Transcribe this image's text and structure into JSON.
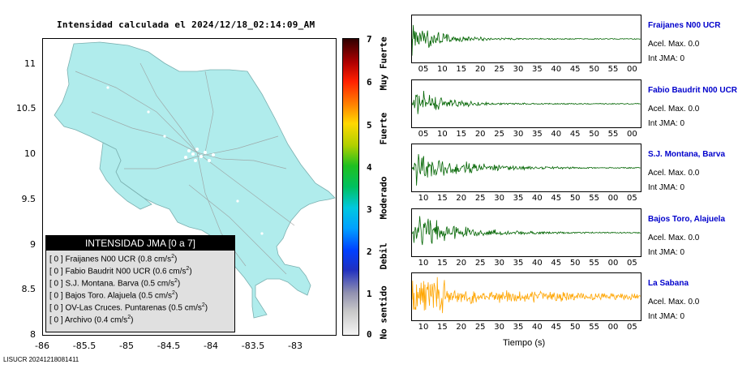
{
  "map": {
    "title": "Intensidad calculada el 2024/12/18_02:14:09_AM",
    "xticks": [
      "-86",
      "-85.5",
      "-85",
      "-84.5",
      "-84",
      "-83.5",
      "-83"
    ],
    "yticks": [
      "11",
      "10.5",
      "10",
      "9.5",
      "9",
      "8.5",
      "8"
    ]
  },
  "legend": {
    "header": "INTENSIDAD JMA [0 a 7]",
    "rows": [
      {
        "level": "[ 0 ]",
        "station": "Fraijanes N00 UCR",
        "value": "(0.8 cm/s",
        "unit_exp": "2",
        "close": ")"
      },
      {
        "level": "[ 0 ]",
        "station": "Fabio Baudrit N00 UCR",
        "value": "(0.6 cm/s",
        "unit_exp": "2",
        "close": ")"
      },
      {
        "level": "[ 0 ]",
        "station": "S.J. Montana. Barva",
        "value": "(0.5 cm/s",
        "unit_exp": "2",
        "close": ")"
      },
      {
        "level": "[ 0 ]",
        "station": "Bajos Toro. Alajuela",
        "value": "(0.5 cm/s",
        "unit_exp": "2",
        "close": ")"
      },
      {
        "level": "[ 0 ]",
        "station": "OV-Las Cruces. Puntarenas",
        "value": "(0.5 cm/s",
        "unit_exp": "2",
        "close": ")"
      },
      {
        "level": "[ 0 ]",
        "station": "Archivo",
        "value": "(0.4 cm/s",
        "unit_exp": "2",
        "close": ")"
      }
    ]
  },
  "colorbar": {
    "ticks": [
      "7",
      "6",
      "5",
      "4",
      "3",
      "2",
      "1",
      "0"
    ],
    "labels": [
      "Muy Fuerte",
      "Fuerte",
      "Moderado",
      "Debil",
      "No sentido"
    ]
  },
  "colors": {
    "land": "#b0ecec",
    "trace_green": "#006400",
    "trace_orange": "#ffa500",
    "station_name": "#0000cc"
  },
  "chart_data": {
    "type": "line",
    "xlabel": "Tiempo (s)",
    "panels": [
      {
        "station": "Fraijanes N00 UCR",
        "acel": "Acel. Max. 0.0",
        "jma": "Int JMA: 0",
        "color": "green",
        "ticks": [
          "05",
          "10",
          "15",
          "20",
          "25",
          "30",
          "35",
          "40",
          "45",
          "50",
          "55",
          "00"
        ]
      },
      {
        "station": "Fabio Baudrit N00 UCR",
        "acel": "Acel. Max. 0.0",
        "jma": "Int JMA: 0",
        "color": "green",
        "ticks": [
          "05",
          "10",
          "15",
          "20",
          "25",
          "30",
          "35",
          "40",
          "45",
          "50",
          "55",
          "00"
        ]
      },
      {
        "station": "S.J. Montana, Barva",
        "acel": "Acel. Max. 0.0",
        "jma": "Int JMA: 0",
        "color": "green",
        "ticks": [
          "10",
          "15",
          "20",
          "25",
          "30",
          "35",
          "40",
          "45",
          "50",
          "55",
          "00",
          "05"
        ]
      },
      {
        "station": "Bajos Toro, Alajuela",
        "acel": "Acel. Max. 0.0",
        "jma": "Int JMA: 0",
        "color": "green",
        "ticks": [
          "10",
          "15",
          "20",
          "25",
          "30",
          "35",
          "40",
          "45",
          "50",
          "55",
          "00",
          "05"
        ]
      },
      {
        "station": "La Sabana",
        "acel": "Acel. Max. 0.0",
        "jma": "Int JMA: 0",
        "color": "orange",
        "ticks": [
          "10",
          "15",
          "20",
          "25",
          "30",
          "35",
          "40",
          "45",
          "50",
          "55",
          "00",
          "05"
        ]
      }
    ]
  },
  "footer": "LISUCR 20241218081411"
}
